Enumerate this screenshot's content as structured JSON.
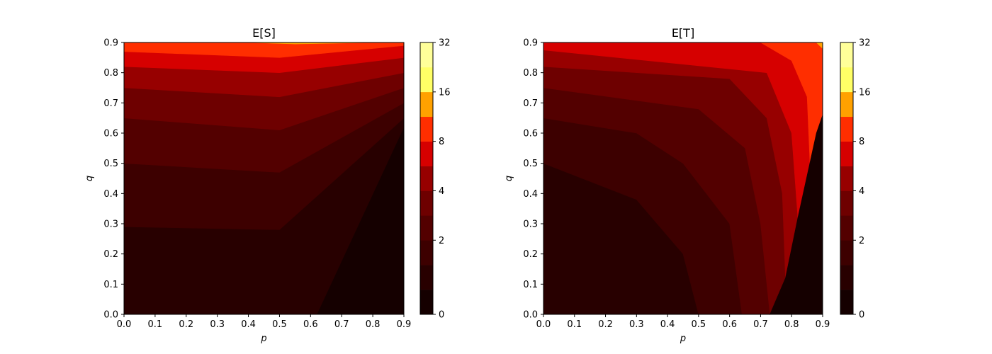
{
  "chart_data": [
    {
      "type": "contour",
      "title": "E[S]",
      "xlabel": "p",
      "ylabel": "q",
      "xlim": [
        0,
        0.9
      ],
      "ylim": [
        0,
        0.9
      ],
      "xticks": [
        "0.0",
        "0.1",
        "0.2",
        "0.3",
        "0.4",
        "0.5",
        "0.6",
        "0.7",
        "0.8",
        "0.9"
      ],
      "yticks": [
        "0.0",
        "0.1",
        "0.2",
        "0.3",
        "0.4",
        "0.5",
        "0.6",
        "0.7",
        "0.8",
        "0.9"
      ],
      "levels": [
        0,
        1,
        1.4142,
        2,
        2.8284,
        4,
        5.6569,
        8,
        11.3137,
        16,
        22.6274,
        32
      ],
      "colorbar": {
        "scale": "log2",
        "ticks": [
          "0",
          "2",
          "4",
          "8",
          "16",
          "32"
        ]
      },
      "colors": [
        "#150000",
        "#280000",
        "#3d0000",
        "#530000",
        "#6e0000",
        "#970000",
        "#d60000",
        "#ff2e00",
        "#ffa100",
        "#ffff66",
        "#ffff99"
      ],
      "regions": [
        {
          "level_index": 0,
          "boundary": [
            [
              0.9,
              0
            ],
            [
              0.62,
              0
            ],
            [
              0.9,
              0.62
            ]
          ]
        },
        {
          "level_index": 1,
          "boundary": [
            [
              0,
              0
            ],
            [
              0.62,
              0
            ],
            [
              0.9,
              0.62
            ],
            [
              0.9,
              0.65
            ],
            [
              0.5,
              0.28
            ],
            [
              0,
              0.29
            ]
          ]
        },
        {
          "level_index": 2,
          "boundary": [
            [
              0,
              0.29
            ],
            [
              0.5,
              0.28
            ],
            [
              0.9,
              0.65
            ],
            [
              0.9,
              0.7
            ],
            [
              0.5,
              0.47
            ],
            [
              0,
              0.5
            ]
          ]
        },
        {
          "level_index": 3,
          "boundary": [
            [
              0,
              0.5
            ],
            [
              0.5,
              0.47
            ],
            [
              0.9,
              0.7
            ],
            [
              0.9,
              0.75
            ],
            [
              0.5,
              0.61
            ],
            [
              0,
              0.65
            ]
          ]
        },
        {
          "level_index": 4,
          "boundary": [
            [
              0,
              0.65
            ],
            [
              0.5,
              0.61
            ],
            [
              0.9,
              0.75
            ],
            [
              0.9,
              0.8
            ],
            [
              0.5,
              0.72
            ],
            [
              0,
              0.75
            ]
          ]
        },
        {
          "level_index": 5,
          "boundary": [
            [
              0,
              0.75
            ],
            [
              0.5,
              0.72
            ],
            [
              0.9,
              0.8
            ],
            [
              0.9,
              0.85
            ],
            [
              0.5,
              0.8
            ],
            [
              0,
              0.82
            ]
          ]
        },
        {
          "level_index": 6,
          "boundary": [
            [
              0,
              0.82
            ],
            [
              0.5,
              0.8
            ],
            [
              0.9,
              0.85
            ],
            [
              0.9,
              0.89
            ],
            [
              0.5,
              0.85
            ],
            [
              0,
              0.87
            ]
          ]
        },
        {
          "level_index": 7,
          "boundary": [
            [
              0,
              0.87
            ],
            [
              0.5,
              0.85
            ],
            [
              0.9,
              0.89
            ],
            [
              0.9,
              0.9
            ],
            [
              0,
              0.9
            ]
          ]
        },
        {
          "level_index": 8,
          "boundary": [
            [
              0.4,
              0.9
            ],
            [
              0.55,
              0.895
            ],
            [
              0.8,
              0.9
            ]
          ]
        }
      ]
    },
    {
      "type": "contour",
      "title": "E[T]",
      "xlabel": "p",
      "ylabel": "q",
      "xlim": [
        0,
        0.9
      ],
      "ylim": [
        0,
        0.9
      ],
      "xticks": [
        "0.0",
        "0.1",
        "0.2",
        "0.3",
        "0.4",
        "0.5",
        "0.6",
        "0.7",
        "0.8",
        "0.9"
      ],
      "yticks": [
        "0.0",
        "0.1",
        "0.2",
        "0.3",
        "0.4",
        "0.5",
        "0.6",
        "0.7",
        "0.8",
        "0.9"
      ],
      "levels": [
        0,
        1,
        1.4142,
        2,
        2.8284,
        4,
        5.6569,
        8,
        11.3137,
        16,
        22.6274,
        32
      ],
      "colorbar": {
        "scale": "log2",
        "ticks": [
          "0",
          "2",
          "4",
          "8",
          "16",
          "32"
        ]
      },
      "colors": [
        "#150000",
        "#280000",
        "#3d0000",
        "#530000",
        "#6e0000",
        "#970000",
        "#d60000",
        "#ff2e00",
        "#ffa100",
        "#ffff66",
        "#ffff99"
      ],
      "regions": [
        {
          "level_index": 1,
          "boundary": [
            [
              0,
              0
            ],
            [
              0.5,
              0
            ],
            [
              0.45,
              0.2
            ],
            [
              0.3,
              0.38
            ],
            [
              0,
              0.5
            ]
          ]
        },
        {
          "level_index": 2,
          "boundary": [
            [
              0,
              0.5
            ],
            [
              0.3,
              0.38
            ],
            [
              0.45,
              0.2
            ],
            [
              0.5,
              0
            ],
            [
              0.64,
              0
            ],
            [
              0.6,
              0.3
            ],
            [
              0.45,
              0.5
            ],
            [
              0.3,
              0.6
            ],
            [
              0,
              0.65
            ]
          ]
        },
        {
          "level_index": 3,
          "boundary": [
            [
              0,
              0.65
            ],
            [
              0.3,
              0.6
            ],
            [
              0.45,
              0.5
            ],
            [
              0.6,
              0.3
            ],
            [
              0.64,
              0
            ],
            [
              0.73,
              0
            ],
            [
              0.7,
              0.3
            ],
            [
              0.65,
              0.55
            ],
            [
              0.5,
              0.68
            ],
            [
              0,
              0.75
            ]
          ]
        },
        {
          "level_index": 4,
          "boundary": [
            [
              0,
              0.75
            ],
            [
              0.5,
              0.68
            ],
            [
              0.65,
              0.55
            ],
            [
              0.7,
              0.3
            ],
            [
              0.73,
              0
            ],
            [
              0.78,
              0.12
            ],
            [
              0.77,
              0.4
            ],
            [
              0.72,
              0.65
            ],
            [
              0.6,
              0.78
            ],
            [
              0,
              0.82
            ]
          ]
        },
        {
          "level_index": 5,
          "boundary": [
            [
              0,
              0.82
            ],
            [
              0.6,
              0.78
            ],
            [
              0.72,
              0.65
            ],
            [
              0.77,
              0.4
            ],
            [
              0.78,
              0.12
            ],
            [
              0.82,
              0.32
            ],
            [
              0.8,
              0.6
            ],
            [
              0.72,
              0.8
            ],
            [
              0,
              0.875
            ]
          ]
        },
        {
          "level_index": 6,
          "boundary": [
            [
              0,
              0.875
            ],
            [
              0.72,
              0.8
            ],
            [
              0.8,
              0.6
            ],
            [
              0.82,
              0.32
            ],
            [
              0.86,
              0.48
            ],
            [
              0.85,
              0.72
            ],
            [
              0.8,
              0.84
            ],
            [
              0.7,
              0.9
            ],
            [
              0,
              0.9
            ]
          ]
        },
        {
          "level_index": 7,
          "boundary": [
            [
              0.7,
              0.9
            ],
            [
              0.8,
              0.84
            ],
            [
              0.85,
              0.72
            ],
            [
              0.86,
              0.48
            ],
            [
              0.88,
              0.6
            ],
            [
              0.9,
              0.66
            ],
            [
              0.9,
              0.88
            ],
            [
              0.88,
              0.9
            ]
          ]
        },
        {
          "level_index": 8,
          "boundary": [
            [
              0.88,
              0.9
            ],
            [
              0.9,
              0.88
            ],
            [
              0.9,
              0.9
            ]
          ]
        },
        {
          "level_index": 0,
          "boundary": [
            [
              0.73,
              0
            ],
            [
              0.9,
              0
            ],
            [
              0.9,
              0.66
            ],
            [
              0.88,
              0.6
            ],
            [
              0.82,
              0.32
            ],
            [
              0.78,
              0.12
            ]
          ]
        }
      ]
    }
  ]
}
